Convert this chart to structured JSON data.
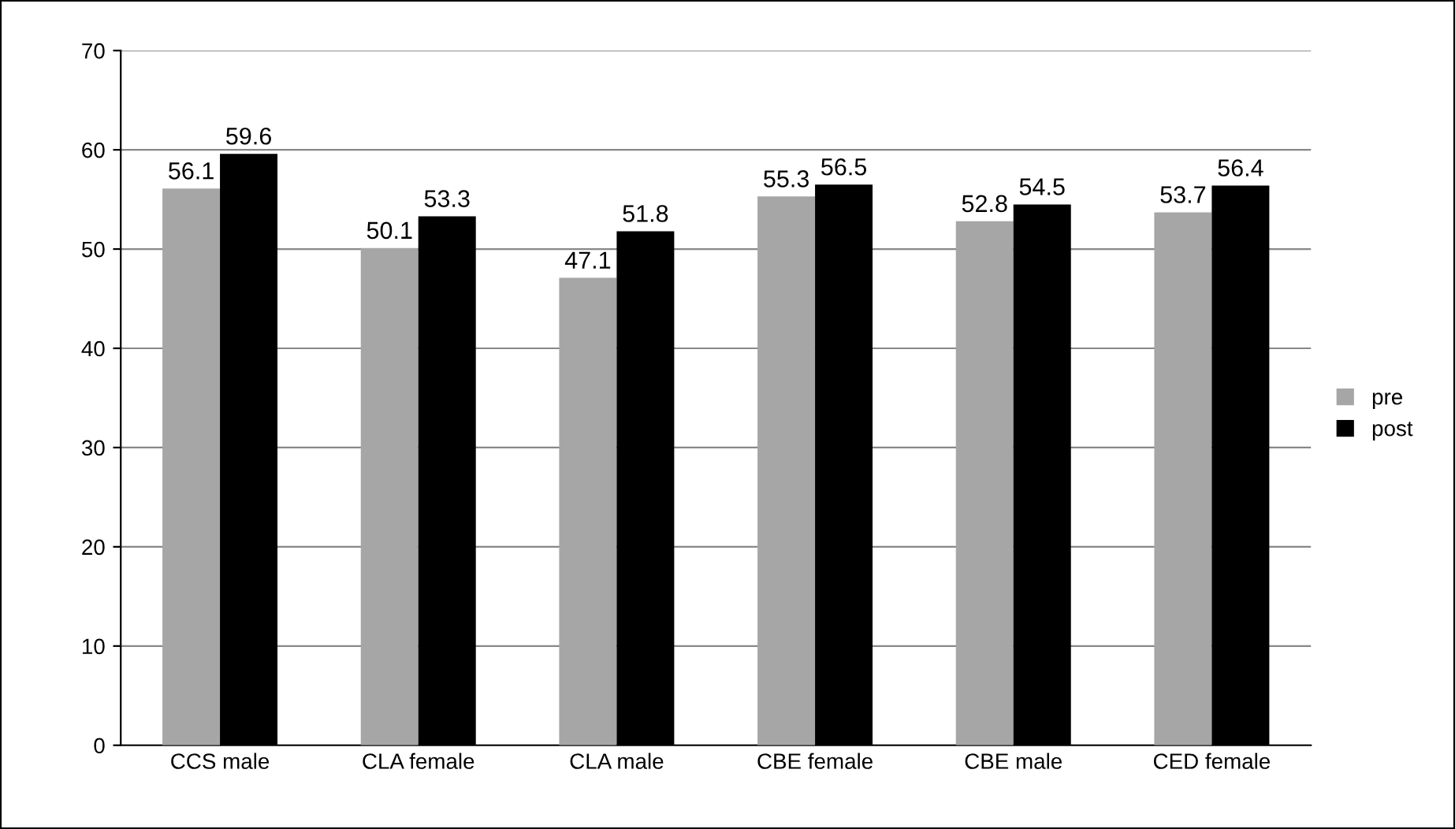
{
  "chart_data": {
    "type": "bar",
    "categories": [
      "CCS male",
      "CLA female",
      "CLA male",
      "CBE female",
      "CBE male",
      "CED female"
    ],
    "series": [
      {
        "name": "pre",
        "color": "#a6a6a6",
        "values": [
          56.1,
          50.1,
          47.1,
          55.3,
          52.8,
          53.7
        ]
      },
      {
        "name": "post",
        "color": "#000000",
        "values": [
          59.6,
          53.3,
          51.8,
          56.5,
          54.5,
          56.4
        ]
      }
    ],
    "ylim": [
      0,
      70
    ],
    "yticks": [
      0,
      10,
      20,
      30,
      40,
      50,
      60,
      70
    ],
    "grid": "y",
    "legend": "right",
    "data_labels": true
  }
}
